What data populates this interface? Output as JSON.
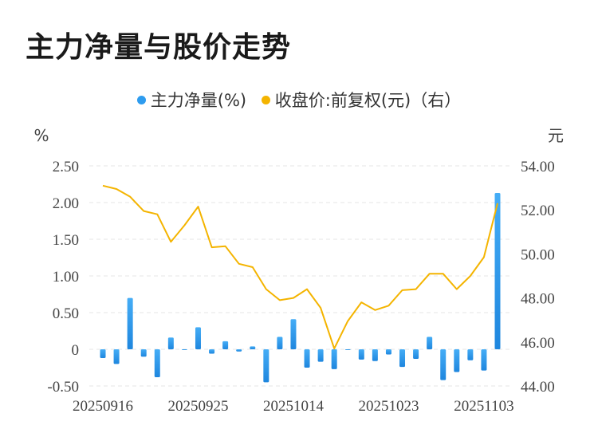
{
  "title": "主力净量与股价走势",
  "chart_data": {
    "type": "bar+line",
    "legend": [
      {
        "name": "主力净量(%)",
        "color": "#2e9cef"
      },
      {
        "name": "收盘价:前复权(元)（右）",
        "color": "#f4b400"
      }
    ],
    "left_unit": "%",
    "right_unit": "元",
    "left_ylim": [
      -0.5,
      2.5
    ],
    "left_ticks": [
      "2.50",
      "2.00",
      "1.50",
      "1.00",
      "0.50",
      "0",
      "-0.50"
    ],
    "right_ylim": [
      44,
      54
    ],
    "right_ticks": [
      "54.00",
      "52.00",
      "50.00",
      "48.00",
      "46.00",
      "44.00"
    ],
    "x_labels": [
      "20250916",
      "20250925",
      "20251014",
      "20251023",
      "20251103"
    ],
    "x_label_index": [
      0,
      7,
      14,
      21,
      28
    ],
    "grid": "horizontal-dashed",
    "series": [
      {
        "name": "主力净量(%)",
        "type": "bar",
        "axis": "left",
        "values": [
          -0.12,
          -0.2,
          0.7,
          -0.1,
          -0.38,
          0.16,
          0.0,
          0.3,
          -0.06,
          0.11,
          -0.03,
          0.04,
          -0.45,
          0.17,
          0.41,
          -0.25,
          -0.17,
          -0.27,
          0.0,
          -0.14,
          -0.16,
          -0.07,
          -0.24,
          -0.13,
          0.17,
          -0.42,
          -0.31,
          -0.15,
          -0.29,
          2.13
        ]
      },
      {
        "name": "收盘价:前复权(元)（右）",
        "type": "line",
        "axis": "right",
        "values": [
          53.1,
          52.95,
          52.6,
          51.95,
          51.8,
          50.55,
          51.3,
          52.15,
          50.3,
          50.35,
          49.55,
          49.4,
          48.4,
          47.9,
          48.0,
          48.4,
          47.55,
          45.7,
          46.95,
          47.8,
          47.45,
          47.65,
          48.35,
          48.4,
          49.1,
          49.1,
          48.4,
          49.0,
          49.85,
          52.3
        ]
      }
    ]
  }
}
